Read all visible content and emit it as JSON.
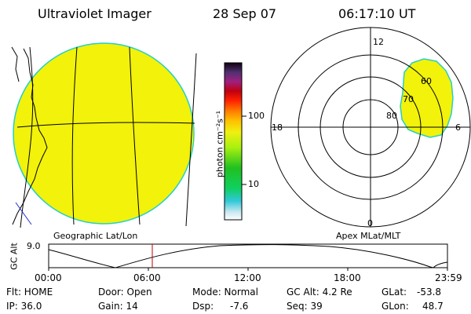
{
  "header": {
    "title": "Ultraviolet Imager",
    "date": "28 Sep 07",
    "time": "06:17:10 UT"
  },
  "colorbar": {
    "label": "photon cm⁻²s⁻¹",
    "ticks": [
      {
        "label": "100",
        "value": 100
      },
      {
        "label": "10",
        "value": 10
      }
    ]
  },
  "polar": {
    "ring_labels": [
      "80",
      "70",
      "60"
    ],
    "clock_labels": {
      "top": "12",
      "left": "18",
      "right": "6",
      "bottom": "0"
    }
  },
  "panel_labels": {
    "left": "Geographic Lat/Lon",
    "right": "Apex MLat/MLT"
  },
  "altitude_plot": {
    "ylabel": "GC Alt",
    "ytick": "9.0",
    "xticks": [
      "00:00",
      "06:00",
      "12:00",
      "18:00",
      "23:59"
    ]
  },
  "status": {
    "flt": "Flt: HOME",
    "ip": "IP: 36.0",
    "door": "Door: Open",
    "gain": "Gain: 14",
    "mode": "Mode: Normal",
    "dsp_label": "Dsp:",
    "dsp_value": "-7.6",
    "gc_alt": "GC Alt: 4.2 Re",
    "seq": "Seq: 39",
    "glat_label": "GLat:",
    "glat_value": "-53.8",
    "glon_label": "GLon:",
    "glon_value": "48.7"
  },
  "colors": {
    "aurora_fill": "#f2f20a",
    "edge": "#23d0c8",
    "marker": "#c00000"
  }
}
